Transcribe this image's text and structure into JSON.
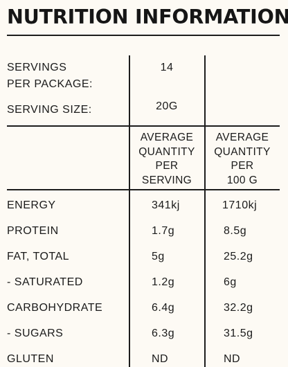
{
  "title": "NUTRITION INFORMATION",
  "servings_label_line1": "SERVINGS",
  "servings_label_line2": "PER PACKAGE:",
  "servings_value": "14",
  "serving_size_label": "SERVING SIZE:",
  "serving_size_value": "20G",
  "column_headers": {
    "per_serving": [
      "AVERAGE",
      "QUANTITY",
      "PER",
      "SERVING"
    ],
    "per_100g": [
      "AVERAGE",
      "QUANTITY",
      "PER",
      "100 G"
    ]
  },
  "rows": [
    {
      "label": "ENERGY",
      "per_serving": "341kj",
      "per_100g": "1710kj"
    },
    {
      "label": "PROTEIN",
      "per_serving": "1.7g",
      "per_100g": "8.5g"
    },
    {
      "label": "FAT, TOTAL",
      "per_serving": "5g",
      "per_100g": "25.2g"
    },
    {
      "label": "- SATURATED",
      "per_serving": "1.2g",
      "per_100g": "6g"
    },
    {
      "label": "CARBOHYDRATE",
      "per_serving": "6.4g",
      "per_100g": "32.2g"
    },
    {
      "label": "- SUGARS",
      "per_serving": "6.3g",
      "per_100g": "31.5g"
    },
    {
      "label": "GLUTEN",
      "per_serving": "ND",
      "per_100g": "ND"
    }
  ]
}
